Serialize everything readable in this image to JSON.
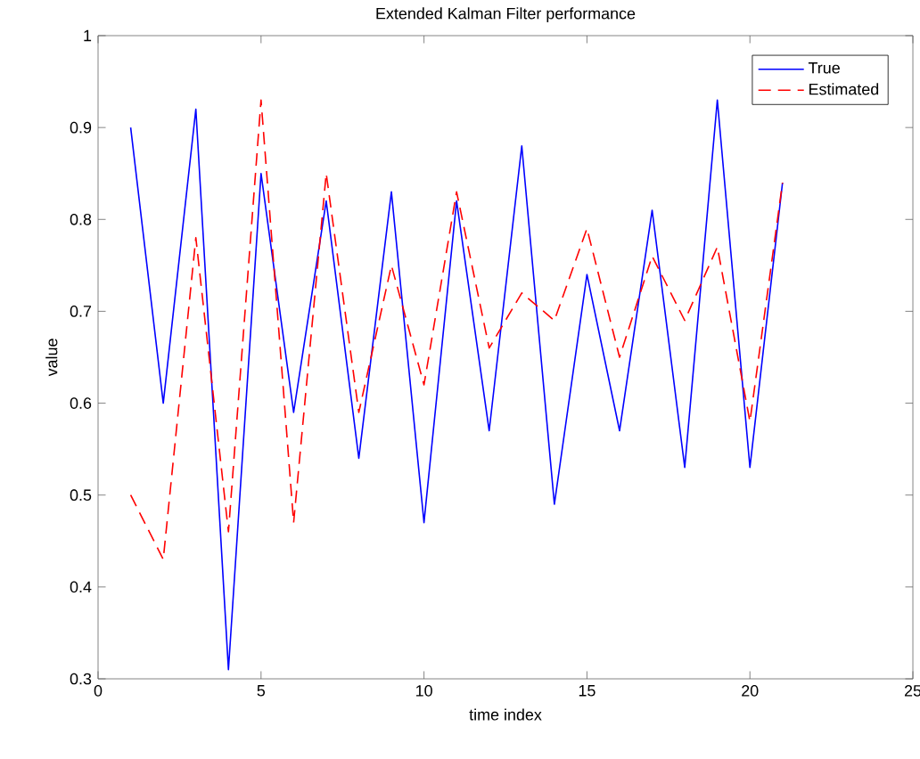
{
  "chart_data": {
    "type": "line",
    "title": "Extended Kalman Filter performance",
    "xlabel": "time index",
    "ylabel": "value",
    "x": [
      1,
      2,
      3,
      4,
      5,
      6,
      7,
      8,
      9,
      10,
      11,
      12,
      13,
      14,
      15,
      16,
      17,
      18,
      19,
      20,
      21
    ],
    "series": [
      {
        "name": "True",
        "color": "#0000ff",
        "line_style": "solid",
        "values": [
          0.9,
          0.6,
          0.92,
          0.31,
          0.85,
          0.59,
          0.82,
          0.54,
          0.83,
          0.47,
          0.82,
          0.57,
          0.88,
          0.49,
          0.74,
          0.57,
          0.81,
          0.53,
          0.93,
          0.53,
          0.84
        ]
      },
      {
        "name": "Estimated",
        "color": "#ff0000",
        "line_style": "dashed",
        "values": [
          0.5,
          0.43,
          0.78,
          0.46,
          0.93,
          0.47,
          0.85,
          0.59,
          0.75,
          0.62,
          0.83,
          0.66,
          0.72,
          0.69,
          0.79,
          0.65,
          0.76,
          0.69,
          0.77,
          0.58,
          0.84
        ]
      }
    ],
    "xlim": [
      0,
      25
    ],
    "xticks": [
      0,
      5,
      10,
      15,
      20,
      25
    ],
    "ylim": [
      0.3,
      1
    ],
    "yticks": [
      0.3,
      0.4,
      0.5,
      0.6,
      0.7,
      0.8,
      0.9,
      1
    ],
    "grid": false,
    "legend": "top right",
    "marker": "none"
  }
}
